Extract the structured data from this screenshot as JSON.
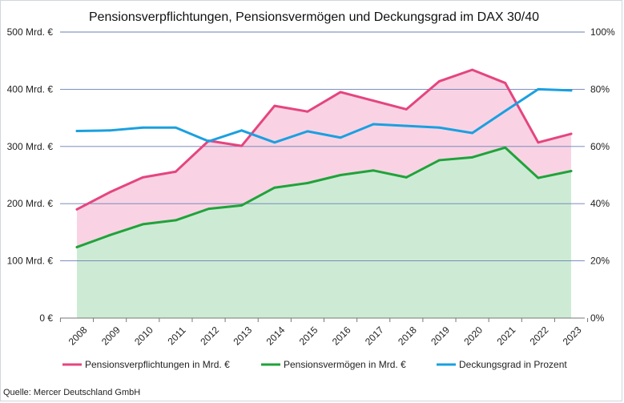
{
  "chart_data": {
    "type": "line",
    "title": "Pensionsverpflichtungen, Pensionsvermögen und Deckungsgrad im DAX 30/40",
    "source": "Quelle: Mercer Deutschland GmbH",
    "categories": [
      "2008",
      "2009",
      "2010",
      "2011",
      "2012",
      "2013",
      "2014",
      "2015",
      "2016",
      "2017",
      "2018",
      "2019",
      "2020",
      "2021",
      "2022",
      "2023"
    ],
    "y_left": {
      "ylim": [
        0,
        500
      ],
      "ticks": [
        0,
        100,
        200,
        300,
        400,
        500
      ],
      "tick_labels": [
        "0 €",
        "100 Mrd. €",
        "200 Mrd. €",
        "300 Mrd. €",
        "400 Mrd. €",
        "500 Mrd. €"
      ]
    },
    "y_right": {
      "ylim": [
        0,
        100
      ],
      "ticks": [
        0,
        20,
        40,
        60,
        80,
        100
      ],
      "tick_labels": [
        "0%",
        "20%",
        "40%",
        "60%",
        "80%",
        "100%"
      ]
    },
    "series": [
      {
        "name": "Pensionsverpflichtungen in Mrd. €",
        "axis": "left",
        "color": "#e5457f",
        "fill": "#f9d3e4",
        "values": [
          190,
          220,
          246,
          256,
          310,
          301,
          371,
          361,
          395,
          380,
          365,
          414,
          434,
          411,
          307,
          322
        ]
      },
      {
        "name": "Pensionsvermögen in Mrd. €",
        "axis": "left",
        "color": "#1fa33a",
        "fill": "#cdebd4",
        "values": [
          124,
          145,
          164,
          171,
          191,
          197,
          228,
          236,
          250,
          258,
          246,
          276,
          281,
          298,
          245,
          257
        ]
      },
      {
        "name": "Deckungsgrad in Prozent",
        "axis": "right",
        "color": "#1aa0e0",
        "values": [
          65.4,
          65.6,
          66.6,
          66.6,
          61.8,
          65.6,
          61.4,
          65.3,
          63.1,
          67.8,
          67.2,
          66.6,
          64.7,
          72.4,
          80.0,
          79.6
        ]
      }
    ],
    "legend": {
      "placement": "bottom"
    },
    "grid": {
      "horizontal": true,
      "vertical": false
    }
  }
}
